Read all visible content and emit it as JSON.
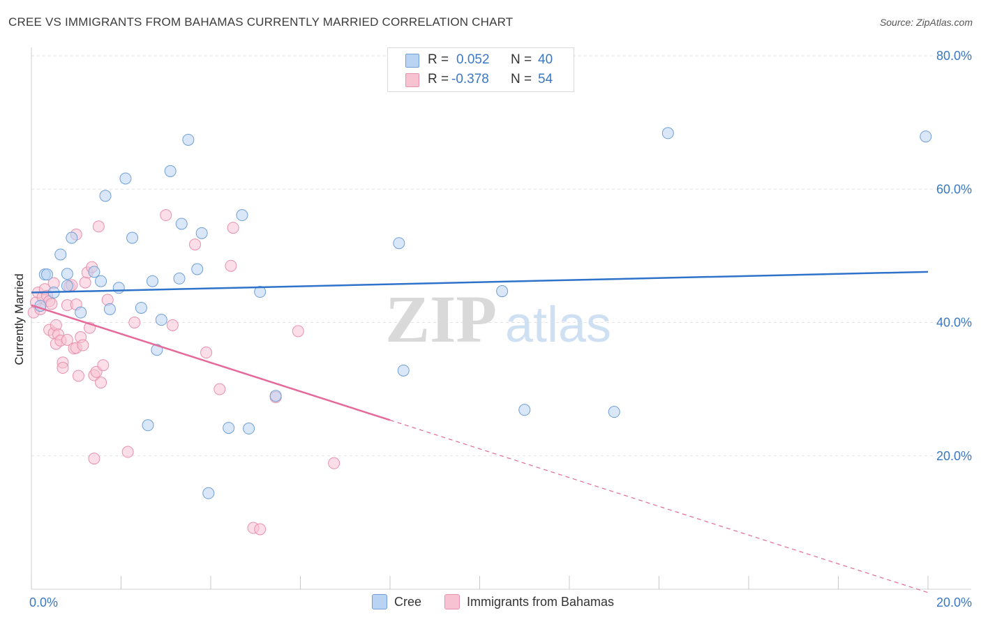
{
  "title": "CREE VS IMMIGRANTS FROM BAHAMAS CURRENTLY MARRIED CORRELATION CHART",
  "source": "Source: ZipAtlas.com",
  "watermark": {
    "zip": "ZIP",
    "atlas": "atlas"
  },
  "colors": {
    "cree_fill": "#b9d3f2",
    "cree_stroke": "#6f9fd6",
    "cree_line": "#2e72c9",
    "bahamas_fill": "#f7c3d3",
    "bahamas_stroke": "#e891ac",
    "bahamas_line": "#e5699a",
    "tick_text": "#3a78c2",
    "grid": "#e2e2e2"
  },
  "stats": {
    "rows": [
      {
        "r_label": "R =",
        "r_value": "0.052",
        "n_label": "N =",
        "n_value": "40"
      },
      {
        "r_label": "R =",
        "r_value": "-0.378",
        "n_label": "N =",
        "n_value": "54"
      }
    ]
  },
  "legend": {
    "cree": "Cree",
    "bahamas": "Immigrants from Bahamas"
  },
  "chart_data": {
    "type": "scatter",
    "title": "CREE VS IMMIGRANTS FROM BAHAMAS CURRENTLY MARRIED CORRELATION CHART",
    "xlabel": "",
    "ylabel": "Currently Married",
    "xlim": [
      0,
      20
    ],
    "ylim": [
      0,
      80
    ],
    "x_ticks": [
      {
        "value": 0,
        "label": "0.0%"
      },
      {
        "value": 20,
        "label": "20.0%"
      }
    ],
    "y_ticks": [
      {
        "value": 20,
        "label": "20.0%"
      },
      {
        "value": 40,
        "label": "40.0%"
      },
      {
        "value": 60,
        "label": "60.0%"
      },
      {
        "value": 80,
        "label": "80.0%"
      }
    ],
    "grid": true,
    "legend_position": "bottom",
    "series": [
      {
        "name": "Cree",
        "r": 0.052,
        "n": 40,
        "trend": {
          "x": [
            0,
            20
          ],
          "y": [
            44.5,
            47.6
          ],
          "dashed_from": null
        },
        "points": [
          [
            0.2,
            42.5
          ],
          [
            0.3,
            47.2
          ],
          [
            0.35,
            47.2
          ],
          [
            0.5,
            44.5
          ],
          [
            0.65,
            50.2
          ],
          [
            0.8,
            45.5
          ],
          [
            0.8,
            47.3
          ],
          [
            0.9,
            52.7
          ],
          [
            1.1,
            41.5
          ],
          [
            1.4,
            47.6
          ],
          [
            1.55,
            46.2
          ],
          [
            1.65,
            59.0
          ],
          [
            1.75,
            42.0
          ],
          [
            1.95,
            45.2
          ],
          [
            2.1,
            61.6
          ],
          [
            2.25,
            52.7
          ],
          [
            2.45,
            42.2
          ],
          [
            2.6,
            24.6
          ],
          [
            2.7,
            46.2
          ],
          [
            2.8,
            35.9
          ],
          [
            2.9,
            40.4
          ],
          [
            3.1,
            62.7
          ],
          [
            3.3,
            46.6
          ],
          [
            3.35,
            54.8
          ],
          [
            3.5,
            67.4
          ],
          [
            3.7,
            48.0
          ],
          [
            3.8,
            53.4
          ],
          [
            3.95,
            14.4
          ],
          [
            4.4,
            24.2
          ],
          [
            4.7,
            56.1
          ],
          [
            4.85,
            24.1
          ],
          [
            5.1,
            44.6
          ],
          [
            5.45,
            29.0
          ],
          [
            8.2,
            51.9
          ],
          [
            8.3,
            32.8
          ],
          [
            10.5,
            44.7
          ],
          [
            11.0,
            26.9
          ],
          [
            13.0,
            26.6
          ],
          [
            14.2,
            68.4
          ],
          [
            19.95,
            67.9
          ]
        ]
      },
      {
        "name": "Immigrants from Bahamas",
        "r": -0.378,
        "n": 54,
        "trend": {
          "x": [
            0,
            20
          ],
          "y": [
            42.6,
            -0.5
          ],
          "dashed_from": 8.0
        },
        "points": [
          [
            0.05,
            41.5
          ],
          [
            0.1,
            43.0
          ],
          [
            0.15,
            44.5
          ],
          [
            0.2,
            42.0
          ],
          [
            0.25,
            43.8
          ],
          [
            0.3,
            45.0
          ],
          [
            0.35,
            44.0
          ],
          [
            0.4,
            43.2
          ],
          [
            0.45,
            42.8
          ],
          [
            0.5,
            45.9
          ],
          [
            0.4,
            38.9
          ],
          [
            0.5,
            38.4
          ],
          [
            0.55,
            39.6
          ],
          [
            0.55,
            36.8
          ],
          [
            0.6,
            38.2
          ],
          [
            0.65,
            37.3
          ],
          [
            0.7,
            34.0
          ],
          [
            0.7,
            33.2
          ],
          [
            0.8,
            37.4
          ],
          [
            0.8,
            42.6
          ],
          [
            0.85,
            45.4
          ],
          [
            0.9,
            45.6
          ],
          [
            0.95,
            36.1
          ],
          [
            1.0,
            42.7
          ],
          [
            1.0,
            53.2
          ],
          [
            1.0,
            36.2
          ],
          [
            1.05,
            32.0
          ],
          [
            1.1,
            37.8
          ],
          [
            1.15,
            36.6
          ],
          [
            1.2,
            46.0
          ],
          [
            1.25,
            47.5
          ],
          [
            1.3,
            39.2
          ],
          [
            1.35,
            48.3
          ],
          [
            1.4,
            32.1
          ],
          [
            1.45,
            32.6
          ],
          [
            1.4,
            19.6
          ],
          [
            1.5,
            54.4
          ],
          [
            1.55,
            31.0
          ],
          [
            1.6,
            33.6
          ],
          [
            1.7,
            43.4
          ],
          [
            2.15,
            20.6
          ],
          [
            2.3,
            40.0
          ],
          [
            3.0,
            56.1
          ],
          [
            3.15,
            39.6
          ],
          [
            3.65,
            51.7
          ],
          [
            3.9,
            35.5
          ],
          [
            4.2,
            30.0
          ],
          [
            4.45,
            48.5
          ],
          [
            4.5,
            54.2
          ],
          [
            4.95,
            9.2
          ],
          [
            5.1,
            9.0
          ],
          [
            5.45,
            28.8
          ],
          [
            5.95,
            38.7
          ],
          [
            6.75,
            18.9
          ]
        ]
      }
    ]
  }
}
